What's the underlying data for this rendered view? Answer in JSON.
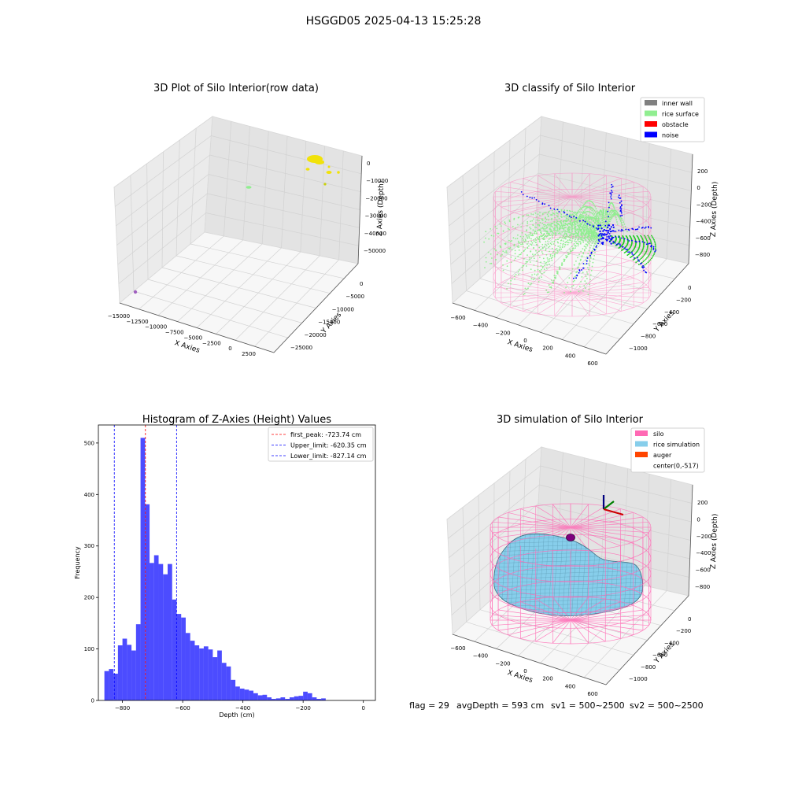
{
  "suptitle": "HSGGD05 2025-04-13 15:25:28",
  "footer": {
    "flag": "flag = 29",
    "avg_depth": "avgDepth = 593 cm",
    "sv1": "sv1 = 500~2500",
    "sv2": "sv2 = 500~2500"
  },
  "colors": {
    "inner_wall": "#808080",
    "rice_surface": "#90ee90",
    "obstacle": "#ff0000",
    "noise": "#0000ff",
    "silo": "#ff69b4",
    "rice_simulation": "#87ceeb",
    "auger": "#ff4500",
    "hist_bar": "#0000ff",
    "peak_line": "#ff0000",
    "limit_line": "#0000ff"
  },
  "chart_data": [
    {
      "type": "scatter",
      "title": "3D Plot of Silo Interior(row data)",
      "xlabel": "X Axies",
      "ylabel": "Y Axies",
      "zlabel": "Z Axies (Depth)",
      "x_ticks": [
        "−15000",
        "−12500",
        "−10000",
        "−7500",
        "−5000",
        "−2500",
        "0",
        "2500"
      ],
      "y_ticks": [
        "0",
        "−5000",
        "−10000",
        "−15000",
        "−20000",
        "−25000"
      ],
      "z_ticks": [
        "0",
        "−10000",
        "−20000",
        "−30000",
        "−40000",
        "−50000"
      ],
      "grid": true
    },
    {
      "type": "scatter",
      "title": "3D classify of Silo Interior",
      "xlabel": "X Axies",
      "ylabel": "Y Axies",
      "zlabel": "Z Axies (Depth)",
      "x_ticks": [
        "−600",
        "−400",
        "−200",
        "0",
        "200",
        "400",
        "600"
      ],
      "y_ticks": [
        "0",
        "−200",
        "−400",
        "−600",
        "−800",
        "−1000"
      ],
      "z_ticks": [
        "200",
        "0",
        "−200",
        "−400",
        "−600",
        "−800"
      ],
      "legend": [
        "inner wall",
        "rice surface",
        "obstacle",
        "noise"
      ],
      "legend_position": "top-right",
      "grid": true
    },
    {
      "type": "bar",
      "title": "Histogram of Z-Axies (Height) Values",
      "xlabel": "Depth (cm)",
      "ylabel": "Frequency",
      "xlim": [
        -880,
        40
      ],
      "ylim": [
        0,
        535
      ],
      "x_ticks": [
        "−800",
        "−600",
        "−400",
        "−200",
        "0"
      ],
      "y_ticks": [
        "0",
        "100",
        "200",
        "300",
        "400",
        "500"
      ],
      "bin_width": 15,
      "bin_start": -860,
      "values": [
        57,
        61,
        52,
        107,
        120,
        108,
        97,
        148,
        510,
        381,
        267,
        282,
        265,
        245,
        265,
        196,
        168,
        161,
        131,
        116,
        107,
        101,
        105,
        99,
        84,
        97,
        73,
        66,
        40,
        27,
        23,
        21,
        19,
        14,
        10,
        11,
        6,
        3,
        4,
        6,
        3,
        6,
        8,
        9,
        17,
        14,
        6,
        3,
        4
      ],
      "vlines": [
        {
          "x": -723.74,
          "label": "first_peak: -723.74 cm",
          "style": "peak"
        },
        {
          "x": -620.35,
          "label": "Upper_limit: -620.35 cm",
          "style": "limit"
        },
        {
          "x": -827.14,
          "label": "Lower_limit: -827.14 cm",
          "style": "limit"
        }
      ],
      "legend_position": "top-right"
    },
    {
      "type": "area",
      "title": "3D simulation of Silo Interior",
      "xlabel": "X Axies",
      "ylabel": "Y Axies",
      "zlabel": "Z Axies (Depth)",
      "x_ticks": [
        "−600",
        "−400",
        "−200",
        "0",
        "200",
        "400",
        "600"
      ],
      "y_ticks": [
        "0",
        "−200",
        "−400",
        "−600",
        "−800",
        "−1000"
      ],
      "z_ticks": [
        "200",
        "0",
        "−200",
        "−400",
        "−600",
        "−800"
      ],
      "legend": [
        "silo",
        "rice simulation",
        "auger",
        "center(0,-517)"
      ],
      "legend_position": "top-right",
      "grid": true
    }
  ]
}
